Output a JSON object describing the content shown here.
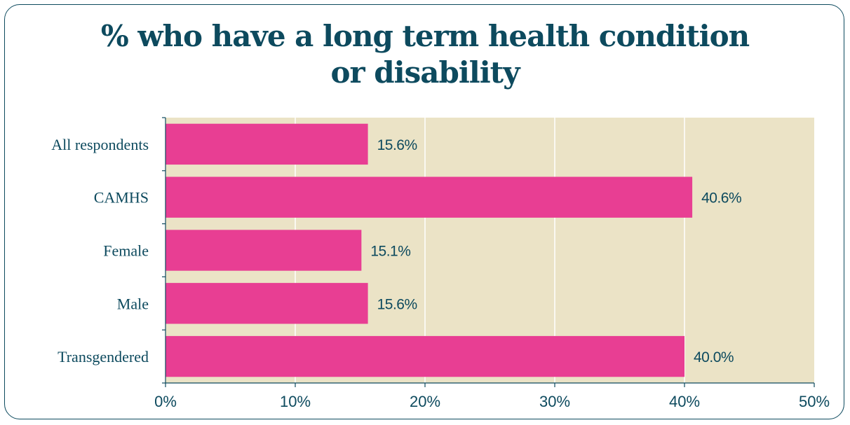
{
  "chart_data": {
    "type": "bar",
    "orientation": "horizontal",
    "title_lines": [
      "% who have a long term health condition",
      "or disability"
    ],
    "categories": [
      "All respondents",
      "CAMHS",
      "Female",
      "Male",
      "Transgendered"
    ],
    "values": [
      15.6,
      40.6,
      15.1,
      15.6,
      40.0
    ],
    "data_labels": [
      "15.6%",
      "40.6%",
      "15.1%",
      "15.6%",
      "40.0%"
    ],
    "xlim": [
      0,
      50
    ],
    "x_ticks": [
      0,
      10,
      20,
      30,
      40,
      50
    ],
    "x_tick_labels": [
      "0%",
      "10%",
      "20%",
      "30%",
      "40%",
      "50%"
    ],
    "grid": "vertical",
    "legend": "none",
    "colors": {
      "bar": "#e83e93",
      "plot_background": "#ebe3c6",
      "text": "#0d4a5e",
      "gridline": "#ffffff",
      "axis": "#0d4a5e"
    }
  }
}
